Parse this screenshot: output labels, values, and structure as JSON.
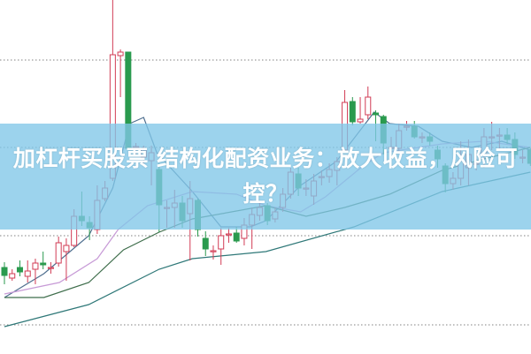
{
  "title": "加杠杆买股票 结构化配资业务：放大收益，风险可控？",
  "colors": {
    "up": "#d23c55",
    "down": "#2a9a4e",
    "grid": "#9a9a9a",
    "banner": "#80c6e8",
    "ma1": "#4f6f8f",
    "ma2": "#c79ad6",
    "ma3": "#3f6e4c",
    "ma4": "#2f7878"
  },
  "chart_data": {
    "type": "candlestick",
    "title": "",
    "xlabel": "",
    "ylabel": "",
    "ylim": [
      0,
      40
    ],
    "grid": true,
    "gridlines": [
      3.2,
      13.3,
      23.3,
      33.2
    ],
    "ohlc": [
      [
        9.7,
        10.3,
        7.8,
        8.8
      ],
      [
        8.5,
        9.5,
        8.2,
        9.0
      ],
      [
        9.7,
        10.5,
        8.7,
        9.2
      ],
      [
        8.7,
        10.5,
        8.0,
        9.3
      ],
      [
        9.5,
        10.7,
        7.8,
        10.2
      ],
      [
        10.2,
        11.5,
        9.5,
        10.0
      ],
      [
        9.7,
        10.3,
        9.0,
        9.7
      ],
      [
        10.2,
        13.2,
        9.8,
        12.5
      ],
      [
        11.5,
        13.0,
        8.2,
        12.2
      ],
      [
        12.2,
        16.3,
        12.0,
        15.5
      ],
      [
        15.5,
        18.3,
        14.4,
        15.0
      ],
      [
        14.8,
        15.5,
        12.8,
        14.2
      ],
      [
        14.0,
        19.0,
        13.5,
        17.3
      ],
      [
        17.5,
        19.5,
        17.2,
        18.7
      ],
      [
        19.8,
        40.0,
        19.5,
        33.8
      ],
      [
        33.7,
        34.4,
        29.0,
        34.1
      ],
      [
        34.1,
        34.1,
        23.0,
        23.2
      ],
      [
        23.4,
        23.8,
        22.5,
        23.4
      ],
      [
        22.2,
        23.5,
        21.5,
        23.0
      ],
      [
        21.8,
        23.5,
        19.0,
        22.7
      ],
      [
        20.8,
        21.5,
        13.7,
        16.8
      ],
      [
        16.5,
        17.3,
        14.2,
        16.5
      ],
      [
        16.5,
        18.5,
        14.2,
        17.0
      ],
      [
        17.0,
        17.8,
        14.2,
        15.0
      ],
      [
        15.8,
        19.5,
        10.5,
        17.5
      ],
      [
        17.3,
        17.5,
        13.2,
        14.0
      ],
      [
        13.0,
        13.8,
        11.0,
        11.8
      ],
      [
        11.6,
        12.2,
        10.6,
        11.6
      ],
      [
        11.8,
        14.2,
        10.0,
        13.3
      ],
      [
        13.5,
        14.2,
        12.5,
        13.5
      ],
      [
        13.6,
        14.3,
        12.5,
        12.7
      ],
      [
        13.0,
        15.3,
        12.2,
        14.5
      ],
      [
        14.5,
        16.5,
        11.8,
        15.7
      ],
      [
        15.6,
        17.1,
        15.0,
        16.5
      ],
      [
        16.7,
        17.0,
        14.5,
        15.0
      ],
      [
        15.2,
        16.5,
        14.8,
        16.0
      ],
      [
        16.5,
        18.7,
        16.0,
        18.0
      ],
      [
        18.0,
        21.0,
        17.5,
        20.5
      ],
      [
        20.3,
        21.0,
        17.8,
        18.7
      ],
      [
        18.7,
        19.7,
        17.8,
        18.7
      ],
      [
        17.8,
        20.3,
        16.8,
        19.5
      ],
      [
        20.0,
        20.7,
        19.0,
        20.0
      ],
      [
        20.0,
        21.5,
        19.3,
        20.8
      ],
      [
        20.7,
        22.2,
        19.0,
        21.7
      ],
      [
        23.0,
        29.8,
        22.8,
        28.4
      ],
      [
        28.5,
        29.0,
        25.8,
        26.2
      ],
      [
        26.2,
        29.0,
        26.0,
        26.5
      ],
      [
        27.0,
        30.2,
        26.5,
        29.0
      ],
      [
        27.2,
        27.5,
        24.0,
        27.0
      ],
      [
        26.8,
        27.0,
        22.5,
        23.8
      ],
      [
        23.3,
        24.5,
        22.5,
        23.3
      ],
      [
        23.2,
        26.0,
        22.8,
        25.2
      ],
      [
        25.7,
        26.3,
        25.2,
        25.7
      ],
      [
        25.7,
        26.3,
        24.3,
        24.5
      ],
      [
        24.5,
        25.0,
        23.8,
        24.5
      ],
      [
        24.5,
        25.0,
        23.5,
        24.0
      ],
      [
        23.0,
        23.5,
        21.0,
        22.0
      ],
      [
        21.2,
        21.5,
        18.2,
        19.2
      ],
      [
        19.2,
        20.5,
        18.5,
        19.8
      ],
      [
        19.8,
        24.0,
        19.0,
        21.8
      ],
      [
        21.0,
        24.2,
        19.0,
        22.5
      ],
      [
        21.5,
        22.0,
        20.7,
        21.5
      ],
      [
        22.5,
        25.5,
        21.0,
        24.5
      ],
      [
        24.5,
        26.2,
        23.0,
        24.5
      ],
      [
        24.7,
        25.5,
        23.0,
        24.7
      ],
      [
        24.7,
        25.5,
        23.7,
        24.2
      ],
      [
        24.2,
        25.0,
        22.0,
        22.5
      ],
      [
        22.2,
        23.0,
        21.5,
        22.2
      ],
      [
        23.0,
        23.2,
        21.2,
        21.5
      ]
    ],
    "moving_averages": [
      {
        "color_key": "ma1",
        "points": [
          [
            0,
            6.3
          ],
          [
            5.1,
            9.0
          ],
          [
            10.9,
            13.3
          ],
          [
            14,
            18.7
          ],
          [
            16.2,
            26.0
          ],
          [
            18,
            26.7
          ],
          [
            19.7,
            22.7
          ],
          [
            24.3,
            18.3
          ],
          [
            28,
            14.3
          ],
          [
            31.8,
            14.3
          ],
          [
            33.8,
            15.0
          ],
          [
            38.3,
            19.0
          ],
          [
            42.9,
            21.7
          ],
          [
            47.8,
            27.3
          ],
          [
            49.8,
            26.0
          ],
          [
            53.5,
            25.7
          ],
          [
            56.6,
            24.0
          ],
          [
            60.4,
            23.3
          ],
          [
            64.3,
            24.0
          ],
          [
            68,
            23.0
          ]
        ]
      },
      {
        "color_key": "ma2",
        "points": [
          [
            0,
            6.7
          ],
          [
            7.1,
            8.0
          ],
          [
            12,
            10.7
          ],
          [
            14.7,
            14.0
          ],
          [
            18.5,
            16.7
          ],
          [
            24.3,
            18.3
          ],
          [
            30,
            18.0
          ],
          [
            33.8,
            16.7
          ],
          [
            38.3,
            16.0
          ],
          [
            41.5,
            17.7
          ],
          [
            46.5,
            21.3
          ],
          [
            49,
            22.7
          ],
          [
            56.6,
            23.7
          ],
          [
            62,
            24.0
          ],
          [
            68,
            23.3
          ]
        ]
      },
      {
        "color_key": "ma3",
        "points": [
          [
            0,
            6.3
          ],
          [
            5.1,
            6.3
          ],
          [
            10.9,
            8.0
          ],
          [
            15.4,
            11.7
          ],
          [
            20,
            13.7
          ],
          [
            24.3,
            15.2
          ],
          [
            33.8,
            16.7
          ],
          [
            39,
            15.5
          ],
          [
            44,
            16.5
          ],
          [
            49.8,
            18.0
          ],
          [
            56.6,
            20.7
          ],
          [
            62,
            22.0
          ],
          [
            68,
            23.3
          ]
        ]
      },
      {
        "color_key": "ma4",
        "points": [
          [
            0,
            3.0
          ],
          [
            10.9,
            5.5
          ],
          [
            20,
            9.5
          ],
          [
            24.3,
            10.7
          ],
          [
            33.8,
            11.5
          ],
          [
            45.2,
            14.3
          ],
          [
            56.6,
            18.3
          ],
          [
            68,
            20.5
          ]
        ]
      }
    ]
  }
}
